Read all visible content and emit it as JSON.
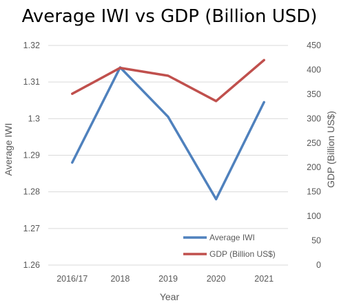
{
  "chart_data": {
    "type": "line",
    "title": "Average IWI vs GDP (Billion USD)",
    "xlabel": "Year",
    "ylabel": "Average IWI",
    "y2label": "GDP (Billion US$)",
    "categories": [
      "2016/17",
      "2018",
      "2019",
      "2020",
      "2021"
    ],
    "ylim": [
      1.26,
      1.32
    ],
    "y2lim": [
      0,
      450
    ],
    "yticks": [
      "1.26",
      "1.27",
      "1.28",
      "1.29",
      "1.3",
      "1.31",
      "1.32"
    ],
    "y2ticks": [
      "0",
      "50",
      "100",
      "150",
      "200",
      "250",
      "300",
      "350",
      "400",
      "450"
    ],
    "grid": true,
    "legend_position": "bottom-right",
    "series": [
      {
        "name": "Average IWI",
        "axis": "left",
        "color": "#4f81bd",
        "values": [
          1.288,
          1.314,
          1.3005,
          1.278,
          1.3045
        ]
      },
      {
        "name": "GDP (Billion US$)",
        "axis": "right",
        "color": "#c0504d",
        "values": [
          351,
          404,
          388,
          336,
          420
        ]
      }
    ]
  }
}
